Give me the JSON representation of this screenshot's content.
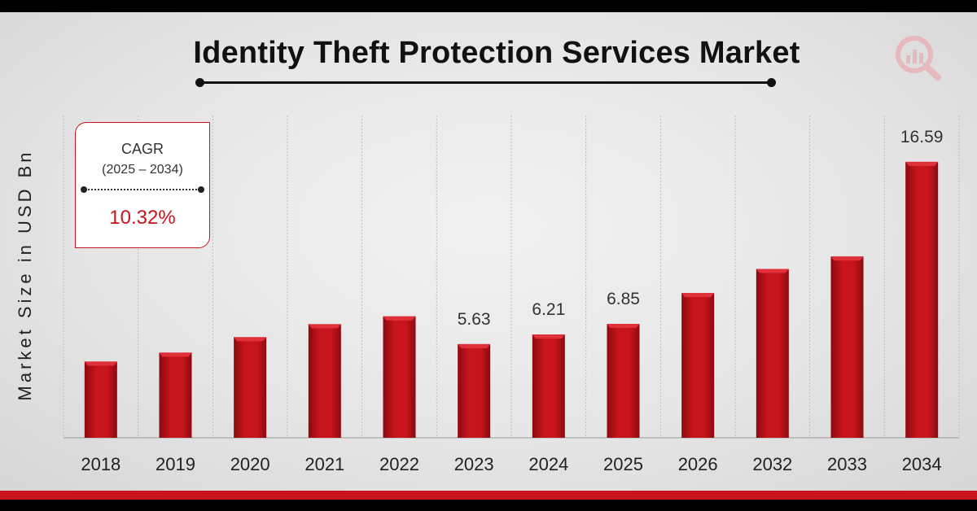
{
  "title": "Identity Theft Protection Services Market",
  "cagr": {
    "label": "CAGR",
    "period": "(2025 – 2034)",
    "value": "10.32%"
  },
  "colors": {
    "bar": "#c8141c",
    "bar_dark": "#8c0a10",
    "accent": "#c8141c"
  },
  "icons": {
    "logo": "magnifier-chart-icon"
  },
  "chart_data": {
    "type": "bar",
    "title": "Identity Theft Protection Services Market",
    "ylabel": "Market Size in USD Bn",
    "xlabel": "",
    "categories": [
      "2018",
      "2019",
      "2020",
      "2021",
      "2022",
      "2023",
      "2024",
      "2025",
      "2026",
      "2032",
      "2033",
      "2034"
    ],
    "values": [
      4.58,
      5.12,
      6.05,
      6.83,
      7.3,
      5.63,
      6.21,
      6.85,
      8.7,
      10.15,
      10.9,
      16.59
    ],
    "data_labels": [
      "",
      "",
      "",
      "",
      "",
      "5.63",
      "6.21",
      "6.85",
      "",
      "",
      "",
      "16.59"
    ],
    "grid": true,
    "legend": "none"
  }
}
